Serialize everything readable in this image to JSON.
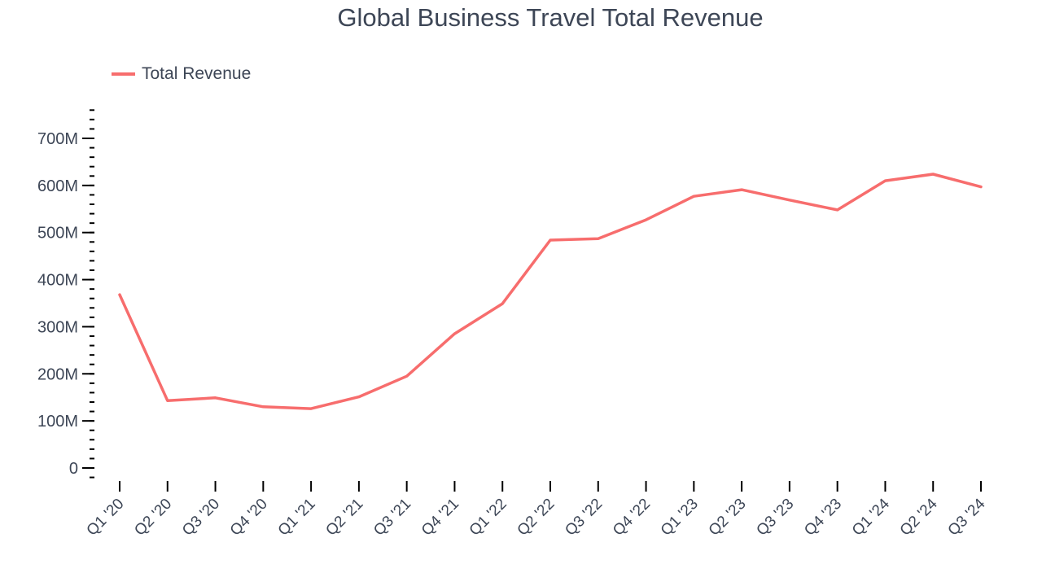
{
  "title": "Global Business Travel Total Revenue",
  "legend": {
    "label": "Total Revenue",
    "color": "#f76d6d"
  },
  "chart_data": {
    "type": "line",
    "title": "Global Business Travel Total Revenue",
    "xlabel": "",
    "ylabel": "",
    "categories": [
      "Q1 '20",
      "Q2 '20",
      "Q3 '20",
      "Q4 '20",
      "Q1 '21",
      "Q2 '21",
      "Q3 '21",
      "Q4 '21",
      "Q1 '22",
      "Q2 '22",
      "Q3 '22",
      "Q4 '22",
      "Q1 '23",
      "Q2 '23",
      "Q3 '23",
      "Q4 '23",
      "Q1 '24",
      "Q2 '24",
      "Q3 '24"
    ],
    "series": [
      {
        "name": "Total Revenue",
        "color": "#f76d6d",
        "values": [
          368,
          143,
          149,
          130,
          126,
          151,
          195,
          285,
          349,
          484,
          487,
          527,
          577,
          591,
          569,
          548,
          610,
          624,
          597
        ]
      }
    ],
    "unit": "M",
    "ylim": [
      -25,
      760
    ],
    "yticks": [
      0,
      100,
      200,
      300,
      400,
      500,
      600,
      700
    ],
    "ytick_labels": [
      "0",
      "100M",
      "200M",
      "300M",
      "400M",
      "500M",
      "600M",
      "700M"
    ],
    "grid": false,
    "legend_position": "top-left"
  }
}
